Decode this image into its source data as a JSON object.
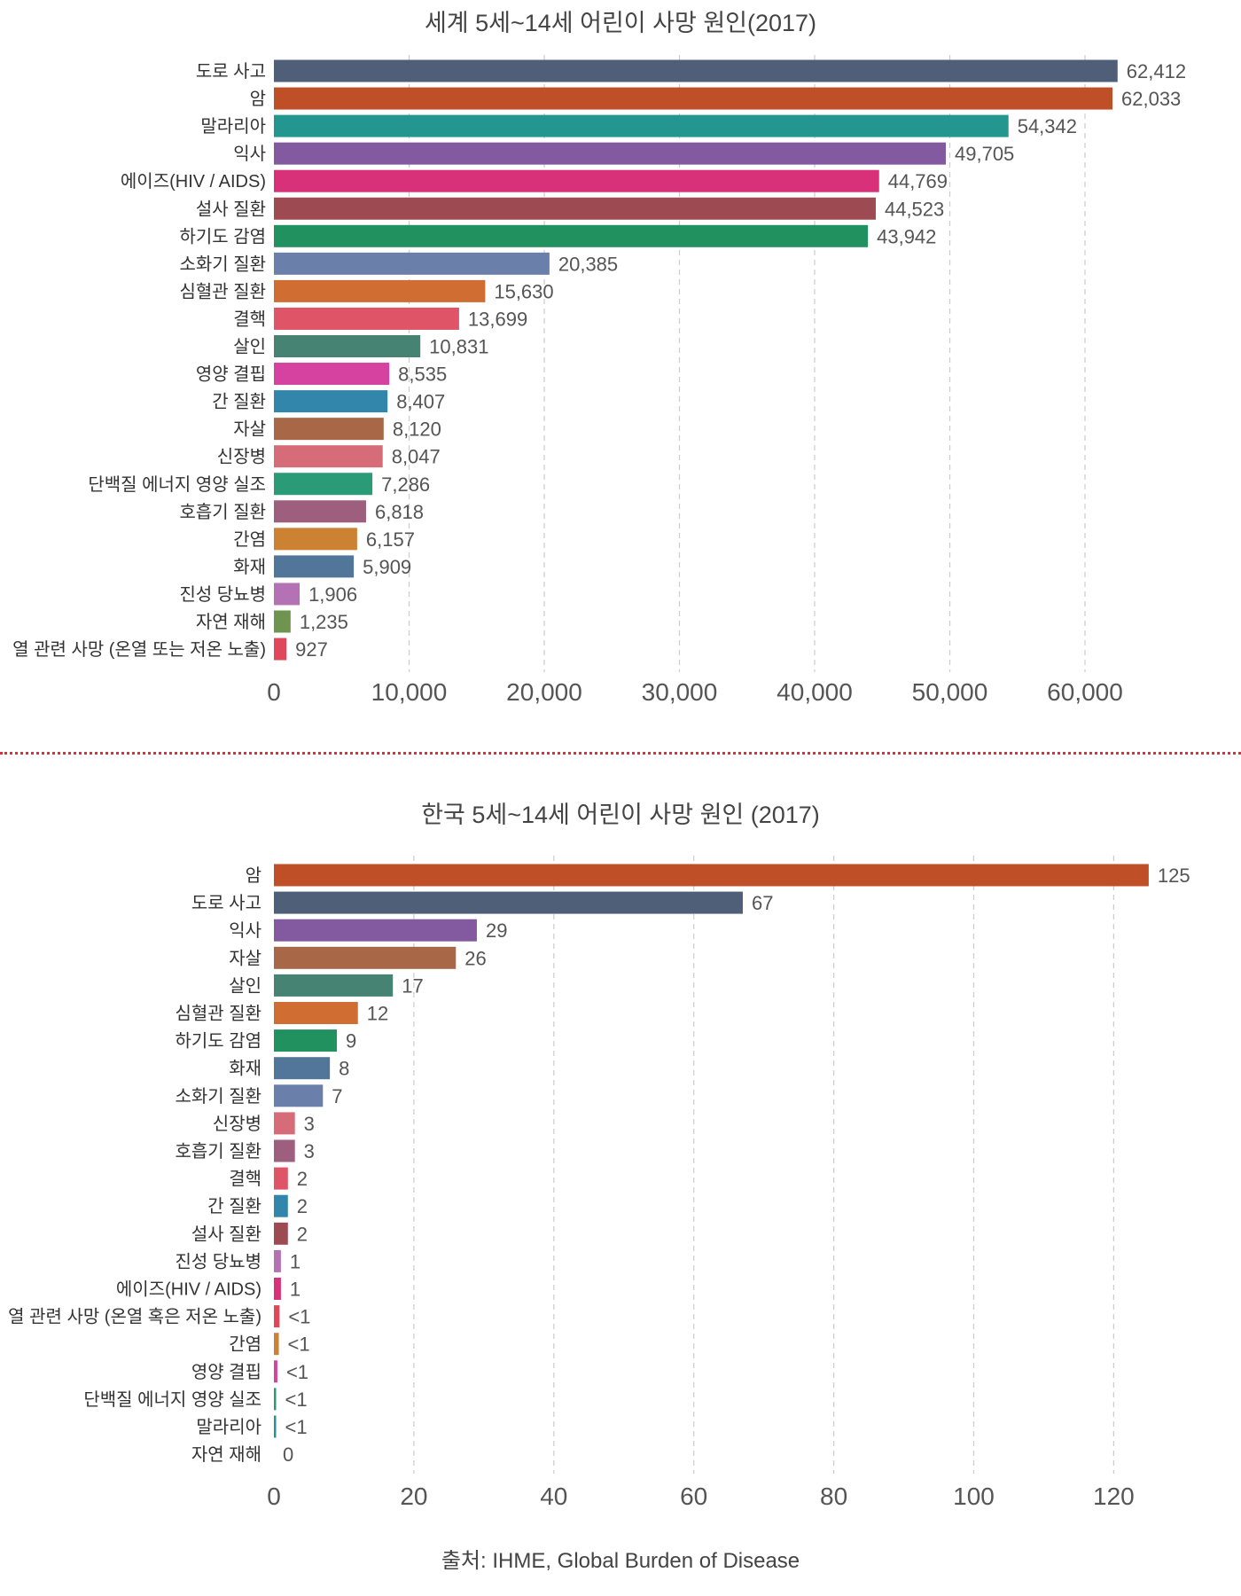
{
  "source_text": "출처: IHME, Global Burden of Disease",
  "chart_data": [
    {
      "type": "bar",
      "orientation": "horizontal",
      "title": "세계 5세~14세 어린이 사망 원인(2017)",
      "xlim": [
        0,
        65000
      ],
      "xticks": [
        0,
        10000,
        20000,
        30000,
        40000,
        50000,
        60000
      ],
      "xtick_labels": [
        "0",
        "10,000",
        "20,000",
        "30,000",
        "40,000",
        "50,000",
        "60,000"
      ],
      "grid": "vertical dashed",
      "categories": [
        "도로 사고",
        "암",
        "말라리아",
        "익사",
        "에이즈(HIV / AIDS)",
        "설사 질환",
        "하기도 감염",
        "소화기 질환",
        "심혈관 질환",
        "결핵",
        "살인",
        "영양 결핍",
        "간 질환",
        "자살",
        "신장병",
        "단백질 에너지 영양 실조",
        "호흡기 질환",
        "간염",
        "화재",
        "진성 당뇨병",
        "자연 재해",
        "열 관련 사망 (온열 또는 저온 노출)"
      ],
      "values": [
        62412,
        62033,
        54342,
        49705,
        44769,
        44523,
        43942,
        20385,
        15630,
        13699,
        10831,
        8535,
        8407,
        8120,
        8047,
        7286,
        6818,
        6157,
        5909,
        1906,
        1235,
        927
      ],
      "value_labels": [
        "62,412",
        "62,033",
        "54,342",
        "49,705",
        "44,769",
        "44,523",
        "43,942",
        "20,385",
        "15,630",
        "13,699",
        "10,831",
        "8,535",
        "8,407",
        "8,120",
        "8,047",
        "7,286",
        "6,818",
        "6,157",
        "5,909",
        "1,906",
        "1,235",
        "927"
      ],
      "colors": [
        "#505f78",
        "#bf4f27",
        "#23968f",
        "#835aa0",
        "#d8317a",
        "#9e4a52",
        "#20915f",
        "#6a7faa",
        "#d06d33",
        "#df5567",
        "#478373",
        "#d542a0",
        "#3386ab",
        "#a86848",
        "#d56c78",
        "#2a9b76",
        "#9e5e7e",
        "#cd8132",
        "#51769a",
        "#b472b5",
        "#6e944f",
        "#e0475b"
      ]
    },
    {
      "type": "bar",
      "orientation": "horizontal",
      "title": "한국 5세~14세 어린이 사망 원인 (2017)",
      "xlim": [
        0,
        130
      ],
      "xticks": [
        0,
        20,
        40,
        60,
        80,
        100,
        120
      ],
      "xtick_labels": [
        "0",
        "20",
        "40",
        "60",
        "80",
        "100",
        "120"
      ],
      "grid": "vertical dashed",
      "categories": [
        "암",
        "도로 사고",
        "익사",
        "자살",
        "살인",
        "심혈관 질환",
        "하기도 감염",
        "화재",
        "소화기 질환",
        "신장병",
        "호흡기 질환",
        "결핵",
        "간 질환",
        "설사 질환",
        "진성 당뇨병",
        "에이즈(HIV / AIDS)",
        "열 관련 사망 (온열 혹은 저온 노출)",
        "간염",
        "영양 결핍",
        "단백질 에너지 영양 실조",
        "말라리아",
        "자연 재해"
      ],
      "values": [
        125,
        67,
        29,
        26,
        17,
        12,
        9,
        8,
        7,
        3,
        3,
        2,
        2,
        2,
        1,
        1,
        0.8,
        0.7,
        0.5,
        0.3,
        0.1,
        0
      ],
      "value_labels": [
        "125",
        "67",
        "29",
        "26",
        "17",
        "12",
        "9",
        "8",
        "7",
        "3",
        "3",
        "2",
        "2",
        "2",
        "1",
        "1",
        "<1",
        "<1",
        "<1",
        "<1",
        "<1",
        "0"
      ],
      "colors": [
        "#bf4f27",
        "#505f78",
        "#835aa0",
        "#a86848",
        "#478373",
        "#d06d33",
        "#20915f",
        "#51769a",
        "#6a7faa",
        "#d56c78",
        "#9e5e7e",
        "#df5567",
        "#3386ab",
        "#9e4a52",
        "#b472b5",
        "#d8317a",
        "#e0475b",
        "#cd8132",
        "#d542a0",
        "#2a9b76",
        "#23968f",
        "#6e944f"
      ]
    }
  ]
}
